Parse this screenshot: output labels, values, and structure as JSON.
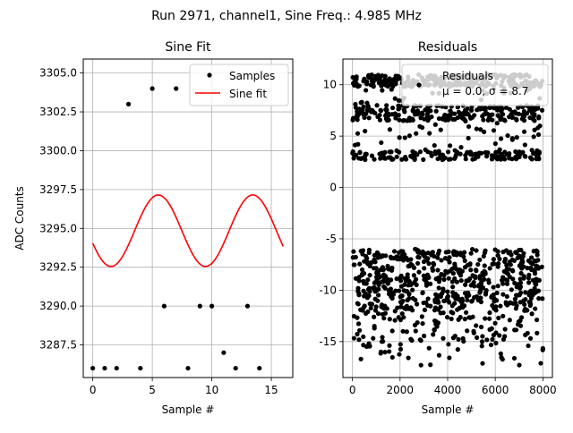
{
  "figure": {
    "suptitle": "Run 2971, channel1, Sine Freq.: 4.985 MHz"
  },
  "chart_data": [
    {
      "type": "scatter+line",
      "title": "Sine Fit",
      "xlabel": "Sample #",
      "ylabel": "ADC Counts",
      "xlim": [
        -0.8,
        16.8
      ],
      "ylim": [
        3285.4,
        3305.9
      ],
      "xticks": [
        0,
        5,
        10,
        15
      ],
      "yticks": [
        3287.5,
        3290.0,
        3292.5,
        3295.0,
        3297.5,
        3300.0,
        3302.5,
        3305.0
      ],
      "ytick_labels": [
        "3287.5",
        "3290.0",
        "3292.5",
        "3295.0",
        "3297.5",
        "3300.0",
        "3302.5",
        "3305.0"
      ],
      "grid": true,
      "legend_position": "top-right",
      "series": [
        {
          "name": "Samples",
          "kind": "scatter",
          "color": "#000000",
          "x": [
            0,
            1,
            2,
            3,
            4,
            5,
            6,
            7,
            8,
            9,
            10,
            11,
            12,
            13,
            14
          ],
          "y": [
            3286,
            3286,
            3286,
            3303,
            3286,
            3304,
            3290,
            3304,
            3286,
            3290,
            3290,
            3287,
            3286,
            3290,
            3286
          ]
        },
        {
          "name": "Sine fit",
          "kind": "line",
          "color": "#ff0000",
          "model": {
            "offset": 3294.85,
            "amplitude": 2.3,
            "period": 7.94,
            "peak_x": 5.5,
            "x_range": [
              0,
              16
            ]
          }
        }
      ]
    },
    {
      "type": "scatter",
      "title": "Residuals",
      "xlabel": "Sample #",
      "ylabel": "",
      "xlim": [
        -400,
        8400
      ],
      "ylim": [
        -18.5,
        12.5
      ],
      "xticks": [
        0,
        2000,
        4000,
        6000,
        8000
      ],
      "yticks": [
        -15,
        -10,
        -5,
        0,
        5,
        10
      ],
      "grid": true,
      "legend_position": "top-right",
      "legend_lines": [
        "Residuals",
        "μ = 0.0, σ = 8.7"
      ],
      "series": [
        {
          "name": "Residuals",
          "kind": "scatter",
          "color": "#000000",
          "n_points": 8000,
          "x_range": [
            0,
            8000
          ],
          "upper_band": {
            "dense_range": [
              2.7,
              11.0
            ],
            "core_range": [
              6.5,
              8.0
            ]
          },
          "lower_band": {
            "dense_range": [
              -12.0,
              -6.0
            ],
            "sparse_min": -17.5
          }
        }
      ]
    }
  ]
}
